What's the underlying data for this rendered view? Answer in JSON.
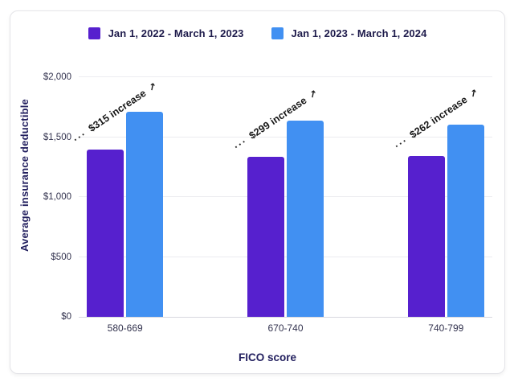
{
  "chart_data": {
    "type": "bar",
    "title": "",
    "xlabel": "FICO score",
    "ylabel": "Average insurance deductible",
    "categories": [
      "580-669",
      "670-740",
      "740-799"
    ],
    "series": [
      {
        "name": "Jan 1, 2022 - March 1, 2023",
        "color": "#5620ce",
        "values": [
          1395,
          1338,
          1340
        ]
      },
      {
        "name": "Jan 1, 2023 - March 1, 2024",
        "color": "#4190f2",
        "values": [
          1710,
          1637,
          1602
        ]
      }
    ],
    "annotations": [
      "$315 increase",
      "$299 increase",
      "$262 increase"
    ],
    "ylim": [
      0,
      2000
    ],
    "yticks": [
      {
        "value": 0,
        "label": "$0"
      },
      {
        "value": 500,
        "label": "$500"
      },
      {
        "value": 1000,
        "label": "$1,000"
      },
      {
        "value": 1500,
        "label": "$1,500"
      },
      {
        "value": 2000,
        "label": "$2,000"
      }
    ],
    "grid": "horizontal",
    "legend_position": "top"
  },
  "colors": {
    "purple": "#5620ce",
    "blue": "#4190f2",
    "navy_text": "#23205f",
    "tick_text": "#33334f",
    "grid_line": "#ececf0",
    "card_border": "#e4e4e8"
  },
  "icons": {
    "annotation_arrow": "↗",
    "annotation_dots": "···"
  }
}
